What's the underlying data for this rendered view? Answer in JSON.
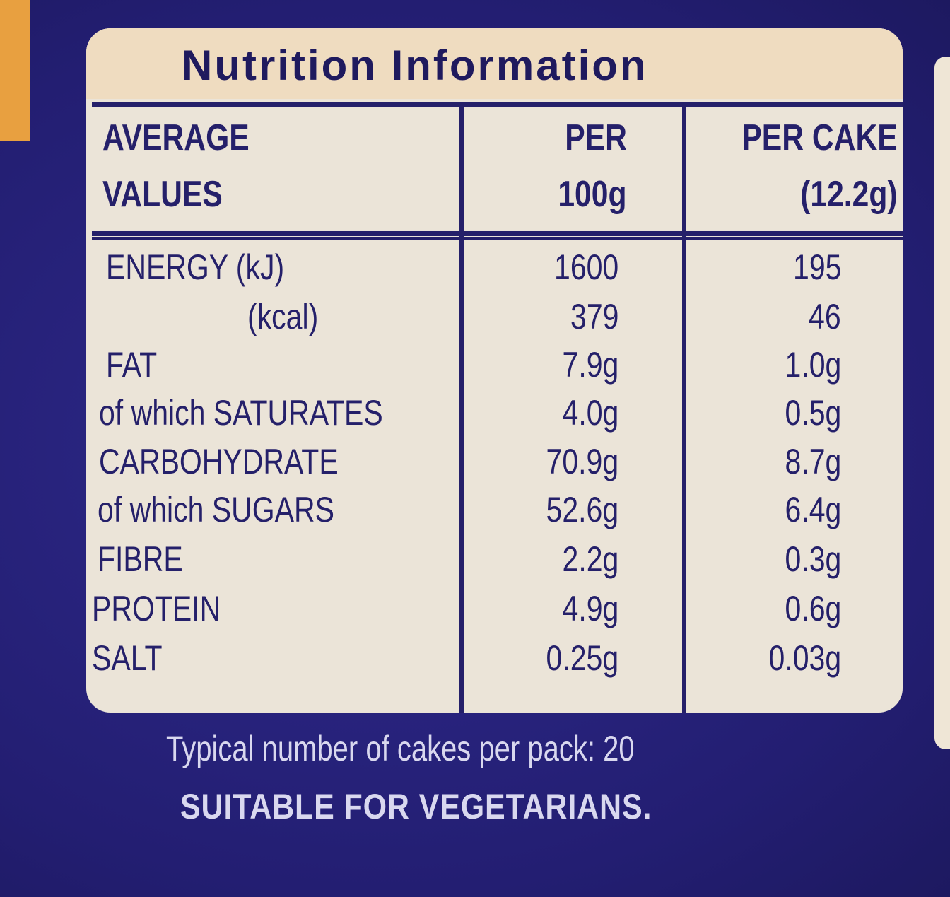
{
  "panel": {
    "title": "Nutrition Information",
    "header": [
      [
        "AVERAGE",
        "VALUES"
      ],
      [
        "PER",
        "100g"
      ],
      [
        "PER CAKE",
        "(12.2g)"
      ]
    ],
    "rows": [
      [
        "ENERGY (kJ)",
        "1600",
        "195"
      ],
      [
        "(kcal)",
        "379",
        "46"
      ],
      [
        "FAT",
        "7.9g",
        "1.0g"
      ],
      [
        "of which SATURATES",
        "4.0g",
        "0.5g"
      ],
      [
        "CARBOHYDRATE",
        "70.9g",
        "8.7g"
      ],
      [
        "of which SUGARS",
        "52.6g",
        "6.4g"
      ],
      [
        "FIBRE",
        "2.2g",
        "0.3g"
      ],
      [
        "PROTEIN",
        "4.9g",
        "0.6g"
      ],
      [
        "SALT",
        "0.25g",
        "0.03g"
      ]
    ]
  },
  "footer": {
    "pack_note": "Typical number of cakes per pack: 20",
    "vegetarian": "SUITABLE FOR VEGETARIANS."
  }
}
